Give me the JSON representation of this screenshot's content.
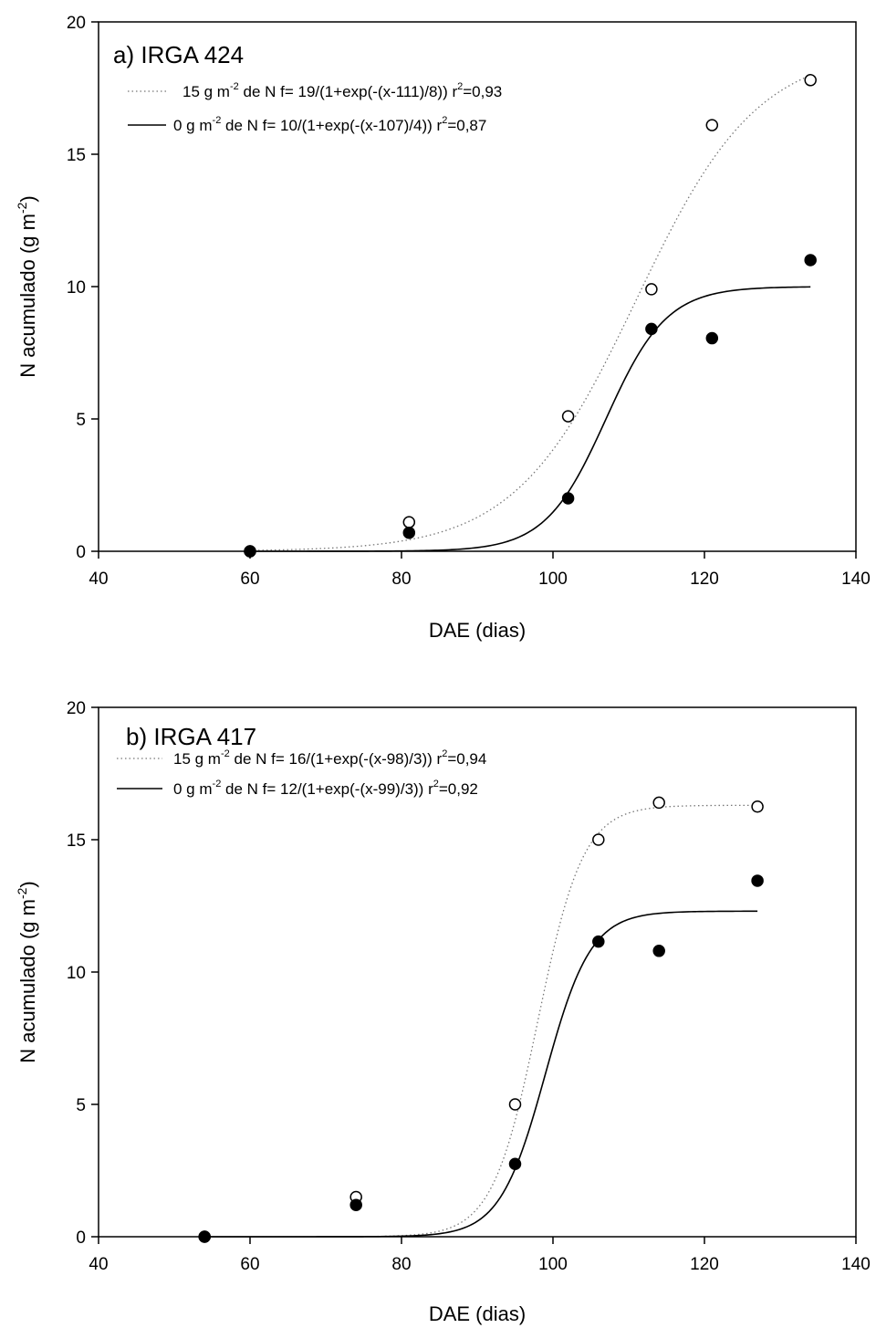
{
  "chart_data": [
    {
      "type": "scatter",
      "title": "a) IRGA 424",
      "xlabel": "DAE (dias)",
      "ylabel": {
        "pre": "N acumulado (g m",
        "sup": "-2",
        "post": ")"
      },
      "xlim": [
        40,
        140
      ],
      "ylim": [
        0,
        20
      ],
      "xticks": [
        40,
        60,
        80,
        100,
        120,
        140
      ],
      "yticks": [
        0,
        5,
        10,
        15,
        20
      ],
      "grid": false,
      "legend_position": "top-left",
      "series": [
        {
          "name": "15 g m-2 de N",
          "marker": "open-circle",
          "line": "dotted",
          "legend": {
            "pre": "15 g m",
            "sup": "-2",
            "mid": " de N f= 19/(1+exp(-(x-111)/8)) r",
            "sup2": "2",
            "post": "=0,93"
          },
          "fit": {
            "a": 19,
            "x0": 111,
            "b": 8,
            "x_range": [
              60,
              134
            ]
          },
          "x": [
            60,
            81,
            102,
            113,
            121,
            134
          ],
          "y": [
            0.0,
            1.1,
            5.1,
            9.9,
            16.1,
            17.8
          ]
        },
        {
          "name": "0 g m-2 de N",
          "marker": "filled-circle",
          "line": "solid",
          "legend": {
            "pre": "0 g m",
            "sup": "-2",
            "mid": " de N f= 10/(1+exp(-(x-107)/4)) r",
            "sup2": "2",
            "post": "=0,87"
          },
          "fit": {
            "a": 10,
            "x0": 107,
            "b": 4,
            "x_range": [
              60,
              134
            ]
          },
          "x": [
            60,
            81,
            102,
            113,
            121,
            134
          ],
          "y": [
            0.0,
            0.7,
            2.0,
            8.4,
            8.05,
            11.0
          ]
        }
      ]
    },
    {
      "type": "scatter",
      "title": "b) IRGA 417",
      "xlabel": "DAE (dias)",
      "ylabel": {
        "pre": "N acumulado (g m",
        "sup": "-2",
        "post": ")"
      },
      "xlim": [
        40,
        140
      ],
      "ylim": [
        0,
        20
      ],
      "xticks": [
        40,
        60,
        80,
        100,
        120,
        140
      ],
      "yticks": [
        0,
        5,
        10,
        15,
        20
      ],
      "grid": false,
      "legend_position": "top-left",
      "series": [
        {
          "name": "15 g m-2 de N",
          "marker": "open-circle",
          "line": "dotted",
          "legend": {
            "pre": "15 g m",
            "sup": "-2",
            "mid": " de N f= 16/(1+exp(-(x-98)/3)) r",
            "sup2": "2",
            "post": "=0,94"
          },
          "fit": {
            "a": 16.3,
            "x0": 98,
            "b": 3,
            "x_range": [
              54,
              127
            ]
          },
          "x": [
            54,
            74,
            95,
            106,
            114,
            127
          ],
          "y": [
            0.0,
            1.5,
            5.0,
            15.0,
            16.4,
            16.25
          ]
        },
        {
          "name": "0 g m-2 de N",
          "marker": "filled-circle",
          "line": "solid",
          "legend": {
            "pre": "0 g m",
            "sup": "-2",
            "mid": " de N f= 12/(1+exp(-(x-99)/3)) r",
            "sup2": "2",
            "post": "=0,92"
          },
          "fit": {
            "a": 12.3,
            "x0": 99,
            "b": 3,
            "x_range": [
              54,
              127
            ]
          },
          "x": [
            54,
            74,
            95,
            106,
            114,
            127
          ],
          "y": [
            0.0,
            1.2,
            2.75,
            11.15,
            10.8,
            13.45
          ]
        }
      ]
    }
  ]
}
